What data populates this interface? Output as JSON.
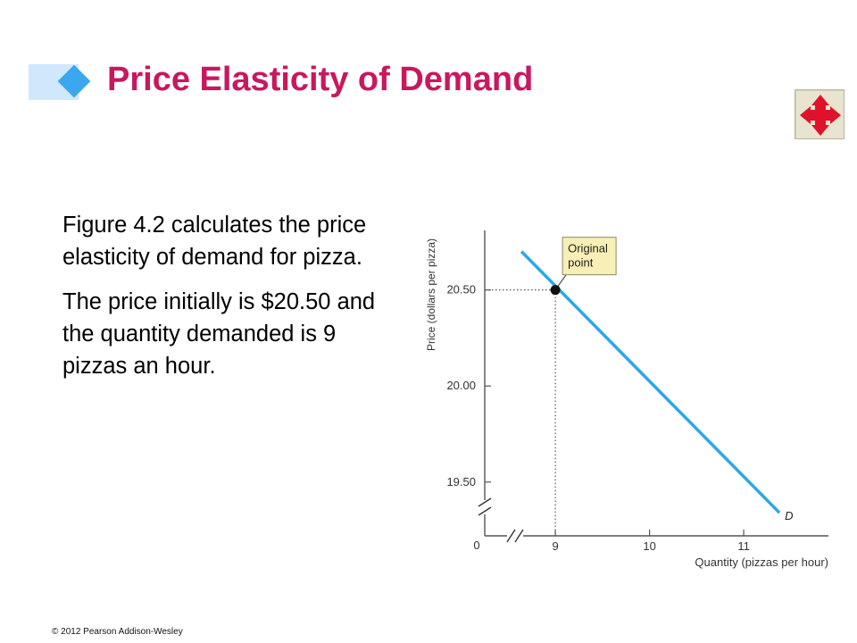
{
  "slide": {
    "title": "Price Elasticity of Demand",
    "paragraphs": [
      "Figure 4.2 calculates the price elasticity of demand for pizza.",
      "The price initially is $20.50 and the quantity demanded is 9 pizzas an hour."
    ],
    "footer": "© 2012 Pearson Addison-Wesley",
    "nav_icon": "four-way-arrows-icon",
    "colors": {
      "title": "#c8185f",
      "accent": "#3aa7ef",
      "curve": "#2aa8e8",
      "nav_arrows": "#e0122a"
    }
  },
  "chart_data": {
    "type": "line",
    "xlabel": "Quantity (pizzas per hour)",
    "ylabel": "Price (dollars per pizza)",
    "x_ticks": [
      9,
      10,
      11
    ],
    "x_tick_labels": [
      "9",
      "10",
      "11"
    ],
    "y_ticks": [
      19.5,
      20.0,
      20.5
    ],
    "y_tick_labels": [
      "19.50",
      "20.00",
      "20.50"
    ],
    "origin_label": "0",
    "xlim": [
      8.25,
      11.9
    ],
    "ylim": [
      19.22,
      20.81
    ],
    "axis_breaks": true,
    "grid": false,
    "series": [
      {
        "name": "D",
        "x": [
          8.64,
          11.38
        ],
        "y": [
          20.7,
          19.34
        ]
      }
    ],
    "point": {
      "x": 9,
      "y": 20.5,
      "label_lines": [
        "Original",
        "point"
      ]
    }
  }
}
